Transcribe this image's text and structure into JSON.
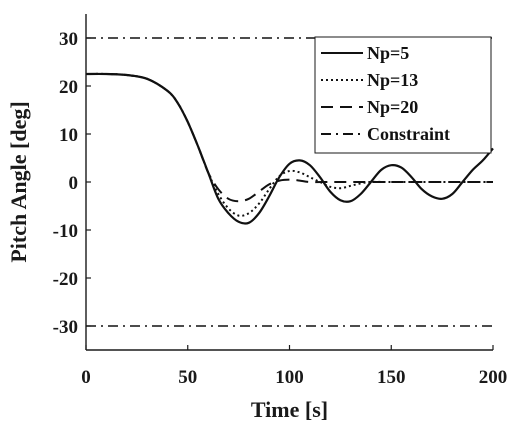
{
  "chart_data": {
    "type": "line",
    "xlabel": "Time [s]",
    "ylabel": "Pitch Angle  [deg]",
    "xlim": [
      0,
      200
    ],
    "ylim": [
      -35,
      35
    ],
    "xticks": [
      "0",
      "50",
      "100",
      "150",
      "200"
    ],
    "yticks": [
      "30",
      "20",
      "10",
      "0",
      "-10",
      "-20",
      "-30"
    ],
    "grid": false,
    "legend_position": "top-right",
    "series": [
      {
        "name": "Np=5",
        "style": "solid",
        "color": "#111111",
        "x": [
          0,
          10,
          20,
          30,
          40,
          45,
          50,
          55,
          60,
          65,
          70,
          75,
          80,
          85,
          90,
          95,
          100,
          105,
          110,
          115,
          120,
          125,
          130,
          135,
          140,
          145,
          150,
          155,
          160,
          165,
          170,
          175,
          180,
          185,
          190,
          195,
          200
        ],
        "y": [
          22.5,
          22.5,
          22.3,
          21.5,
          19,
          16.5,
          12.5,
          7.5,
          2,
          -3.5,
          -6.5,
          -8.3,
          -8.5,
          -6.5,
          -3,
          1,
          3.8,
          4.5,
          3.5,
          1,
          -2,
          -3.8,
          -4,
          -2.5,
          0,
          2.5,
          3.5,
          3,
          1,
          -1.5,
          -3,
          -3.5,
          -2.5,
          0,
          2.5,
          4.5,
          7
        ]
      },
      {
        "name": "Np=13",
        "style": "dotted",
        "color": "#111111",
        "x": [
          0,
          10,
          20,
          30,
          40,
          45,
          50,
          55,
          60,
          65,
          70,
          75,
          80,
          85,
          90,
          95,
          100,
          105,
          110,
          115,
          120,
          125,
          130,
          135,
          140,
          150,
          160,
          170,
          180,
          190,
          200
        ],
        "y": [
          22.5,
          22.5,
          22.3,
          21.5,
          19,
          16.5,
          12.5,
          7.5,
          2,
          -2.5,
          -5.5,
          -7,
          -6.5,
          -4.5,
          -1.5,
          1.2,
          2.3,
          2,
          1,
          0,
          -1,
          -1.3,
          -0.8,
          -0.3,
          0,
          0,
          0,
          0,
          0,
          0,
          0
        ]
      },
      {
        "name": "Np=20",
        "style": "dashed",
        "color": "#111111",
        "x": [
          0,
          10,
          20,
          30,
          40,
          45,
          50,
          55,
          60,
          65,
          70,
          75,
          80,
          85,
          90,
          95,
          100,
          105,
          110,
          120,
          130,
          140,
          150,
          160,
          170,
          180,
          190,
          200
        ],
        "y": [
          22.5,
          22.5,
          22.3,
          21.5,
          19,
          16.5,
          12.5,
          7.5,
          2,
          -1.5,
          -3.5,
          -4,
          -3.5,
          -2,
          -0.5,
          0.3,
          0.5,
          0.3,
          0,
          0,
          0,
          0,
          0,
          0,
          0,
          0,
          0,
          0
        ]
      }
    ],
    "constraints": {
      "name": "Constraint",
      "style": "dashdot",
      "color": "#111111",
      "values": [
        30,
        -30
      ]
    }
  }
}
